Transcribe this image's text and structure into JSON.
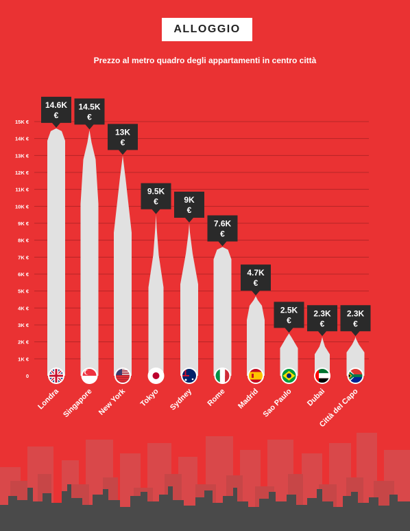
{
  "header": {
    "title": "ALLOGGIO",
    "subtitle": "Prezzo al metro quadro degli appartamenti in centro città"
  },
  "colors": {
    "background": "#ea3233",
    "building": "#e1e1e1",
    "badge": "#2a2a2a",
    "skyline_back": "#d9484a",
    "skyline_mid": "#c74647",
    "skyline_front": "#4a4a4a"
  },
  "chart_data": {
    "type": "bar",
    "title": "Prezzo al metro quadro degli appartamenti in centro città",
    "ylabel": "",
    "xlabel": "",
    "ylim": [
      0,
      15000
    ],
    "y_ticks": [
      "15K €",
      "14K €",
      "13K €",
      "12K €",
      "11K €",
      "10K €",
      "9K €",
      "8K €",
      "7K €",
      "6K €",
      "5K €",
      "4K €",
      "3K €",
      "2K €",
      "1K €",
      "0"
    ],
    "categories": [
      "Londra",
      "Singapore",
      "New York",
      "Tokyo",
      "Sydney",
      "Rome",
      "Madrid",
      "Sao Paulo",
      "Dubai",
      "Città del Capo"
    ],
    "values": [
      14600,
      14500,
      13000,
      9500,
      9000,
      7600,
      4700,
      2500,
      2300,
      2300
    ],
    "value_labels": [
      "14.6K",
      "14.5K",
      "13K",
      "9.5K",
      "9K",
      "7.6K",
      "4.7K",
      "2.5K",
      "2.3K",
      "2.3K"
    ],
    "currency_symbol": "€",
    "flags": [
      "uk-flag-icon",
      "singapore-flag-icon",
      "usa-flag-icon",
      "japan-flag-icon",
      "australia-flag-icon",
      "italy-flag-icon",
      "spain-flag-icon",
      "brazil-flag-icon",
      "uae-flag-icon",
      "south-africa-flag-icon"
    ],
    "grid": true
  }
}
